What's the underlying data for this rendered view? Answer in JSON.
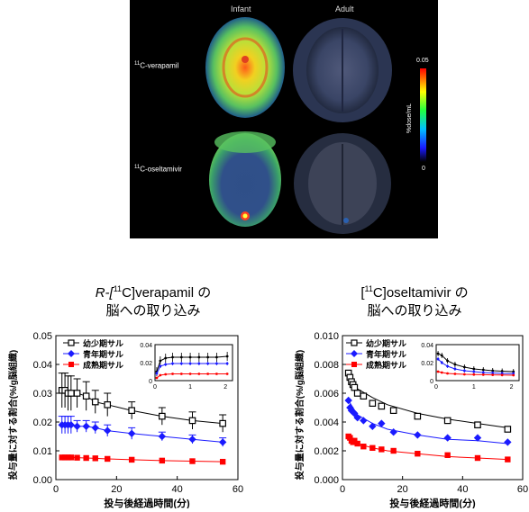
{
  "pet_image": {
    "column_labels": [
      "Infant",
      "Adult"
    ],
    "row_labels": [
      {
        "prefix": "11",
        "name": "C-verapamil"
      },
      {
        "prefix": "11",
        "name": "C-oseltamivir"
      }
    ],
    "colorbar": {
      "max_label": "0.05",
      "min_label": "0",
      "unit": "%dose/mL"
    }
  },
  "titles": {
    "left_line1_pre": "R-[",
    "left_sup": "11",
    "left_line1_post": "C]verapamil の",
    "left_line2": "脳への取り込み",
    "right_line1_pre": "[",
    "right_sup": "11",
    "right_line1_post": "C]oseltamivir の",
    "right_line2": "脳への取り込み"
  },
  "chart_data": [
    {
      "type": "scatter",
      "title": "R-[11C]verapamil の 脳への取り込み",
      "xlabel": "投与後経過時間(分)",
      "ylabel": "投与量に対する割合(%/g脳組織)",
      "xlim": [
        0,
        60
      ],
      "ylim": [
        0,
        0.05
      ],
      "xticks": [
        "0",
        "20",
        "40",
        "60"
      ],
      "yticks": [
        "0.00",
        "0.01",
        "0.02",
        "0.03",
        "0.04",
        "0.05"
      ],
      "legend_position": "top-right",
      "series": [
        {
          "name": "幼少期サル",
          "marker": "open-square",
          "color": "#000000",
          "x": [
            2,
            3,
            4,
            5,
            7,
            10,
            13,
            17,
            25,
            35,
            45,
            55
          ],
          "y": [
            0.031,
            0.031,
            0.03,
            0.03,
            0.03,
            0.029,
            0.027,
            0.026,
            0.024,
            0.022,
            0.0205,
            0.0195
          ],
          "err": [
            0.006,
            0.006,
            0.006,
            0.006,
            0.005,
            0.005,
            0.004,
            0.004,
            0.003,
            0.003,
            0.003,
            0.003
          ]
        },
        {
          "name": "青年期サル",
          "marker": "filled-diamond",
          "color": "#1a1aff",
          "x": [
            2,
            3,
            4,
            5,
            7,
            10,
            13,
            17,
            25,
            35,
            45,
            55
          ],
          "y": [
            0.019,
            0.019,
            0.019,
            0.019,
            0.0185,
            0.0185,
            0.018,
            0.017,
            0.016,
            0.015,
            0.014,
            0.013
          ],
          "err": [
            0.003,
            0.003,
            0.003,
            0.003,
            0.002,
            0.002,
            0.002,
            0.002,
            0.002,
            0.0015,
            0.0015,
            0.0015
          ]
        },
        {
          "name": "成熟期サル",
          "marker": "filled-square",
          "color": "#ff0000",
          "x": [
            2,
            3,
            4,
            5,
            7,
            10,
            13,
            17,
            25,
            35,
            45,
            55
          ],
          "y": [
            0.0077,
            0.0077,
            0.0077,
            0.0077,
            0.0076,
            0.0075,
            0.0074,
            0.0072,
            0.0069,
            0.0066,
            0.0064,
            0.0062
          ],
          "err": [
            0,
            0,
            0,
            0,
            0,
            0,
            0,
            0,
            0,
            0,
            0,
            0
          ]
        }
      ],
      "inset": {
        "xlim": [
          0,
          2.2
        ],
        "ylim": [
          0,
          0.04
        ],
        "xticks": [
          "0",
          "1",
          "2"
        ],
        "yticks": [
          "0",
          "0.02",
          "0.04"
        ],
        "series": [
          {
            "x": [
              0.05,
              0.15,
              0.3,
              0.5,
              0.75,
              1.0,
              1.25,
              1.5,
              1.75,
              2.05
            ],
            "y": [
              0.01,
              0.022,
              0.025,
              0.026,
              0.026,
              0.026,
              0.026,
              0.026,
              0.026,
              0.027
            ],
            "err": 0.005,
            "color": "#000000"
          },
          {
            "x": [
              0.05,
              0.15,
              0.3,
              0.5,
              0.75,
              1.0,
              1.25,
              1.5,
              1.75,
              2.05
            ],
            "y": [
              0.008,
              0.016,
              0.018,
              0.019,
              0.019,
              0.019,
              0.019,
              0.019,
              0.019,
              0.019
            ],
            "err": 0.002,
            "color": "#1a1aff"
          },
          {
            "x": [
              0.05,
              0.15,
              0.3,
              0.5,
              0.75,
              1.0,
              1.25,
              1.5,
              1.75,
              2.05
            ],
            "y": [
              0.003,
              0.006,
              0.007,
              0.0075,
              0.0075,
              0.0075,
              0.0075,
              0.0075,
              0.0075,
              0.0075
            ],
            "err": 0.0,
            "color": "#ff0000"
          }
        ]
      }
    },
    {
      "type": "scatter",
      "title": "[11C]oseltamivir の 脳への取り込み",
      "xlabel": "投与後経過時間(分)",
      "ylabel": "投与量に対する割合(%/g脳組織)",
      "xlim": [
        0,
        60
      ],
      "ylim": [
        0,
        0.01
      ],
      "xticks": [
        "0",
        "20",
        "40",
        "60"
      ],
      "yticks": [
        "0.000",
        "0.002",
        "0.004",
        "0.006",
        "0.008",
        "0.010"
      ],
      "legend_position": "top-left",
      "series": [
        {
          "name": "幼少期サル",
          "marker": "open-square",
          "color": "#000000",
          "x": [
            2,
            2.5,
            3,
            3.5,
            4,
            5,
            7,
            10,
            13,
            17,
            25,
            35,
            45,
            55
          ],
          "y": [
            0.0074,
            0.0071,
            0.0068,
            0.0066,
            0.0064,
            0.006,
            0.0058,
            0.0053,
            0.0051,
            0.0048,
            0.0044,
            0.0041,
            0.0038,
            0.0035
          ],
          "fit": [
            0.0072,
            0.0063,
            0.0057,
            0.0052,
            0.0046,
            0.0042,
            0.0039,
            0.0036
          ]
        },
        {
          "name": "青年期サル",
          "marker": "filled-diamond",
          "color": "#1a1aff",
          "x": [
            2,
            2.5,
            3,
            3.5,
            4,
            5,
            7,
            10,
            13,
            17,
            25,
            35,
            45,
            55
          ],
          "y": [
            0.0055,
            0.005,
            0.0048,
            0.0047,
            0.0046,
            0.0043,
            0.0041,
            0.0037,
            0.0039,
            0.0033,
            0.0031,
            0.0029,
            0.0029,
            0.0026
          ],
          "fit": [
            0.0055,
            0.0045,
            0.0039,
            0.0035,
            0.0031,
            0.0028,
            0.0027,
            0.0025
          ]
        },
        {
          "name": "成熟期サル",
          "marker": "filled-square",
          "color": "#ff0000",
          "x": [
            2,
            2.5,
            3,
            3.5,
            4,
            5,
            7,
            10,
            13,
            17,
            25,
            35,
            45,
            55
          ],
          "y": [
            0.003,
            0.0029,
            0.0027,
            0.0026,
            0.0027,
            0.0025,
            0.0023,
            0.0022,
            0.0021,
            0.002,
            0.0018,
            0.0017,
            0.0015,
            0.0014
          ],
          "fit": [
            0.0028,
            0.0025,
            0.0022,
            0.002,
            0.0018,
            0.0016,
            0.0015,
            0.0014
          ]
        }
      ],
      "inset": {
        "xlim": [
          0,
          2.2
        ],
        "ylim": [
          0,
          0.04
        ],
        "xticks": [
          "0",
          "1",
          "2"
        ],
        "yticks": [
          "0",
          "0.02",
          "0.04"
        ],
        "series": [
          {
            "x": [
              0.05,
              0.15,
              0.3,
              0.5,
              0.75,
              1.0,
              1.25,
              1.5,
              1.75,
              2.05
            ],
            "y": [
              0.03,
              0.028,
              0.022,
              0.018,
              0.015,
              0.013,
              0.012,
              0.011,
              0.0105,
              0.01
            ],
            "err": 0.003,
            "color": "#000000"
          },
          {
            "x": [
              0.05,
              0.15,
              0.3,
              0.5,
              0.75,
              1.0,
              1.25,
              1.5,
              1.75,
              2.05
            ],
            "y": [
              0.024,
              0.02,
              0.016,
              0.013,
              0.011,
              0.01,
              0.009,
              0.0085,
              0.008,
              0.0078
            ],
            "err": 0.002,
            "color": "#1a1aff"
          },
          {
            "x": [
              0.05,
              0.15,
              0.3,
              0.5,
              0.75,
              1.0,
              1.25,
              1.5,
              1.75,
              2.05
            ],
            "y": [
              0.01,
              0.009,
              0.008,
              0.0075,
              0.007,
              0.0068,
              0.0066,
              0.0064,
              0.0062,
              0.006
            ],
            "err": 0.0,
            "color": "#ff0000"
          }
        ]
      }
    }
  ]
}
